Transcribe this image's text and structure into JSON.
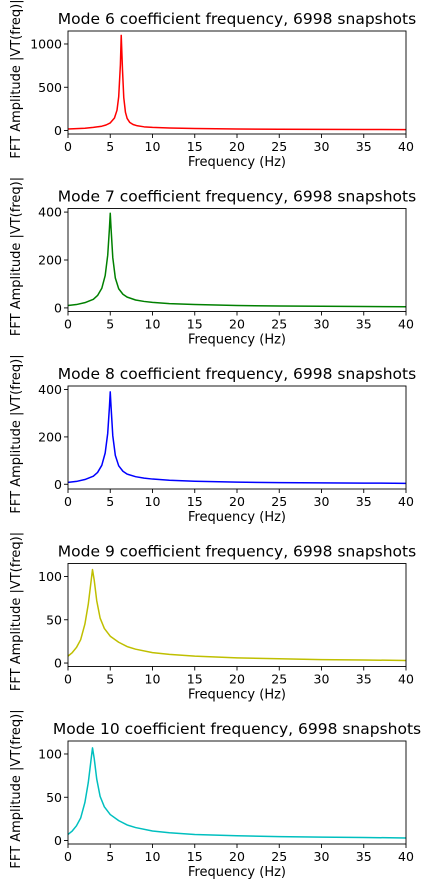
{
  "chart_data": [
    {
      "type": "line",
      "title": "Mode 6 coefficient frequency, 6998 snapshots",
      "xlabel": "Frequency (Hz)",
      "ylabel": "FFT Amplitude |VT(freq)|",
      "xlim": [
        0,
        40
      ],
      "ylim": [
        -40,
        1150
      ],
      "xticks": [
        0,
        5,
        10,
        15,
        20,
        25,
        30,
        35,
        40
      ],
      "yticks": [
        0,
        500,
        1000
      ],
      "grid": false,
      "color": "#ff0000",
      "series": [
        {
          "x": [
            0,
            1,
            2,
            3,
            4,
            4.5,
            5,
            5.5,
            5.8,
            6.0,
            6.2,
            6.3,
            6.45,
            6.6,
            6.8,
            7.0,
            7.3,
            7.7,
            8.2,
            9,
            10,
            12,
            15,
            20,
            25,
            30,
            35,
            40
          ],
          "y": [
            18,
            22,
            27,
            36,
            50,
            64,
            88,
            145,
            235,
            390,
            760,
            1100,
            700,
            380,
            210,
            140,
            95,
            70,
            55,
            43,
            36,
            29,
            24,
            18,
            15,
            13,
            12,
            11
          ]
        }
      ]
    },
    {
      "type": "line",
      "title": "Mode 7 coefficient frequency, 6998 snapshots",
      "xlabel": "Frequency (Hz)",
      "ylabel": "FFT Amplitude |VT(freq)|",
      "xlim": [
        0,
        40
      ],
      "ylim": [
        -15,
        415
      ],
      "xticks": [
        0,
        5,
        10,
        15,
        20,
        25,
        30,
        35,
        40
      ],
      "yticks": [
        0,
        200,
        400
      ],
      "grid": false,
      "color": "#008000",
      "series": [
        {
          "x": [
            0,
            1,
            2,
            3,
            3.5,
            4.0,
            4.4,
            4.7,
            4.9,
            5.0,
            5.1,
            5.3,
            5.6,
            6.0,
            6.5,
            7,
            8,
            9,
            10,
            12,
            15,
            20,
            25,
            30,
            35,
            40
          ],
          "y": [
            10,
            14,
            22,
            36,
            52,
            82,
            135,
            220,
            330,
            395,
            330,
            210,
            125,
            80,
            57,
            45,
            33,
            27,
            23,
            18,
            14,
            10,
            8,
            7,
            6,
            5
          ]
        }
      ]
    },
    {
      "type": "line",
      "title": "Mode 8 coefficient frequency, 6998 snapshots",
      "xlabel": "Frequency (Hz)",
      "ylabel": "FFT Amplitude |VT(freq)|",
      "xlim": [
        0,
        40
      ],
      "ylim": [
        -20,
        415
      ],
      "xticks": [
        0,
        5,
        10,
        15,
        20,
        25,
        30,
        35,
        40
      ],
      "yticks": [
        0,
        200,
        400
      ],
      "grid": false,
      "color": "#0000ff",
      "series": [
        {
          "x": [
            0,
            1,
            2,
            3,
            3.5,
            4.0,
            4.4,
            4.7,
            4.9,
            5.0,
            5.1,
            5.3,
            5.6,
            6.0,
            6.5,
            7,
            8,
            9,
            10,
            12,
            15,
            20,
            25,
            30,
            35,
            40
          ],
          "y": [
            8,
            12,
            20,
            34,
            50,
            80,
            132,
            215,
            325,
            390,
            325,
            205,
            122,
            78,
            55,
            43,
            32,
            26,
            22,
            17,
            13,
            9,
            7,
            6,
            5,
            4
          ]
        }
      ]
    },
    {
      "type": "line",
      "title": "Mode 9 coefficient frequency, 6998 snapshots",
      "xlabel": "Frequency (Hz)",
      "ylabel": "FFT Amplitude |VT(freq)|",
      "xlim": [
        0,
        40
      ],
      "ylim": [
        -4,
        115
      ],
      "xticks": [
        0,
        5,
        10,
        15,
        20,
        25,
        30,
        35,
        40
      ],
      "yticks": [
        0,
        50,
        100
      ],
      "grid": false,
      "color": "#bfbf00",
      "series": [
        {
          "x": [
            0,
            0.5,
            1.0,
            1.5,
            2.0,
            2.4,
            2.7,
            2.9,
            3.1,
            3.4,
            3.8,
            4.3,
            5,
            6,
            7,
            8,
            10,
            12,
            15,
            20,
            25,
            30,
            35,
            40
          ],
          "y": [
            8,
            12,
            18,
            27,
            45,
            68,
            92,
            108,
            96,
            72,
            52,
            40,
            31,
            24,
            19,
            16,
            12,
            10,
            8,
            6,
            5,
            4,
            3.5,
            3
          ]
        }
      ]
    },
    {
      "type": "line",
      "title": "Mode 10 coefficient frequency, 6998 snapshots",
      "xlabel": "Frequency (Hz)",
      "ylabel": "FFT Amplitude |VT(freq)|",
      "xlim": [
        0,
        40
      ],
      "ylim": [
        -4,
        115
      ],
      "xticks": [
        0,
        5,
        10,
        15,
        20,
        25,
        30,
        35,
        40
      ],
      "yticks": [
        0,
        50,
        100
      ],
      "grid": false,
      "color": "#00bfbf",
      "series": [
        {
          "x": [
            0,
            0.5,
            1.0,
            1.5,
            2.0,
            2.4,
            2.7,
            2.9,
            3.1,
            3.4,
            3.8,
            4.3,
            5,
            6,
            7,
            8,
            10,
            12,
            15,
            20,
            25,
            30,
            35,
            40
          ],
          "y": [
            7,
            11,
            17,
            26,
            44,
            67,
            91,
            107,
            95,
            71,
            51,
            39,
            30,
            23,
            18,
            15,
            11,
            9,
            7,
            5.5,
            4.5,
            4,
            3.5,
            3
          ]
        }
      ]
    }
  ]
}
